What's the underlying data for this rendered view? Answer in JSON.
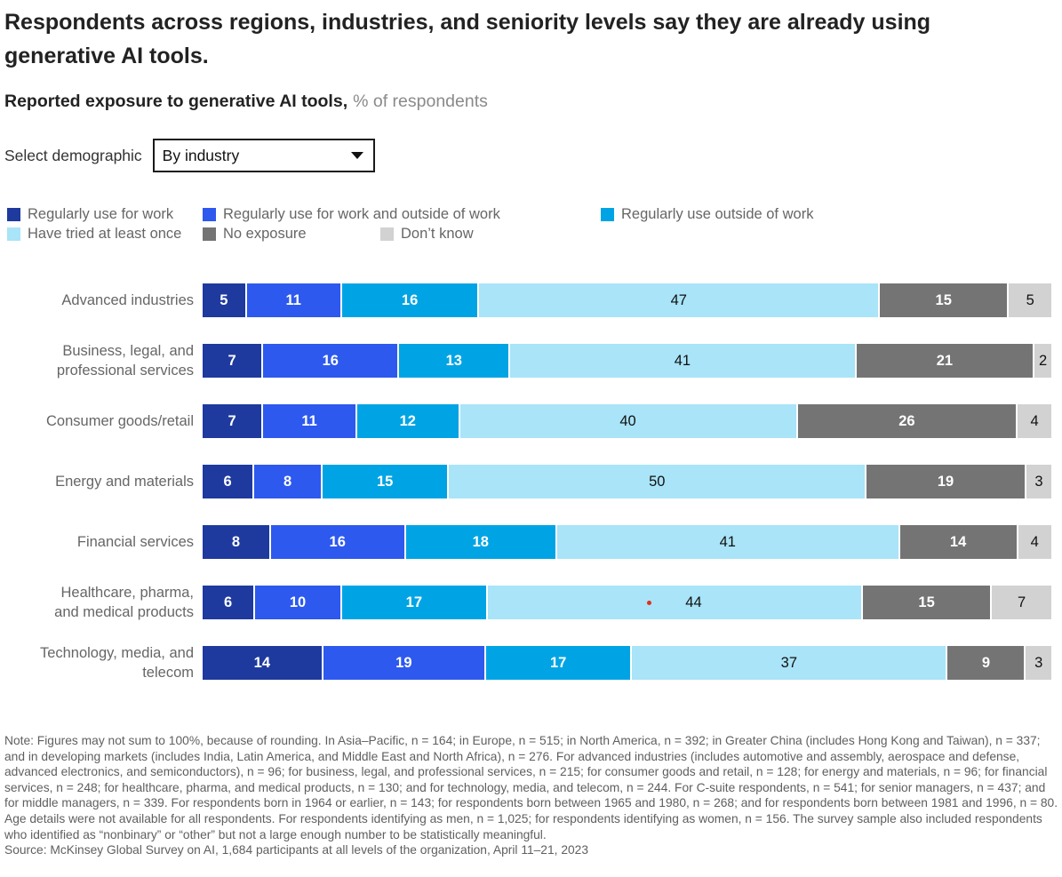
{
  "header": {
    "title": "Respondents across regions, industries, and seniority levels say they are already using\ngenerative AI tools.",
    "subtitle_bold": "Reported exposure to generative AI tools,",
    "subtitle_unit": "% of respondents"
  },
  "demographic": {
    "label": "Select demographic",
    "selected_option": "By industry"
  },
  "legend": {
    "rows": [
      [
        0,
        1,
        2
      ],
      [
        3,
        4,
        5
      ]
    ]
  },
  "chart_data": {
    "type": "bar",
    "stacked": true,
    "orientation": "horizontal",
    "unit": "% of respondents",
    "categories": [
      "Advanced industries",
      "Business, legal, and\nprofessional services",
      "Consumer goods/retail",
      "Energy and materials",
      "Financial services",
      "Healthcare, pharma,\nand medical products",
      "Technology, media, and\ntelecom"
    ],
    "series": [
      {
        "name": "Regularly use for work",
        "color": "#1e3a9e",
        "text": "light",
        "values": [
          5,
          7,
          7,
          6,
          8,
          6,
          14
        ]
      },
      {
        "name": "Regularly use for work and outside of work",
        "color": "#2d59ee",
        "text": "light",
        "values": [
          11,
          16,
          11,
          8,
          16,
          10,
          19
        ]
      },
      {
        "name": "Regularly use outside of work",
        "color": "#00a4e4",
        "text": "light",
        "values": [
          16,
          13,
          12,
          15,
          18,
          17,
          17
        ]
      },
      {
        "name": "Have tried at least once",
        "color": "#a9e4f8",
        "text": "dark",
        "values": [
          47,
          41,
          40,
          50,
          41,
          44,
          37
        ]
      },
      {
        "name": "No exposure",
        "color": "#747474",
        "text": "light",
        "values": [
          15,
          21,
          26,
          19,
          14,
          15,
          9
        ]
      },
      {
        "name": "Don’t know",
        "color": "#d2d2d2",
        "text": "dark",
        "values": [
          5,
          2,
          4,
          3,
          4,
          7,
          3
        ]
      }
    ],
    "annotation": {
      "type": "red-dot",
      "category_index": 5,
      "series_index": 3,
      "color": "#e0301e"
    }
  },
  "footer": {
    "note": "Note: Figures may not sum to 100%, because of rounding. In Asia–Pacific, n = 164; in Europe, n = 515; in North America, n = 392; in Greater China (includes Hong Kong and Taiwan), n = 337; and in developing markets (includes India, Latin America, and Middle East and North Africa), n = 276. For advanced industries (includes automotive and assembly, aerospace and defense, advanced electronics, and semiconductors), n = 96; for business, legal, and professional services, n = 215; for consumer goods and retail, n = 128; for energy and materials, n = 96; for financial services, n = 248; for healthcare, pharma, and medical products, n = 130; and for technology, media, and telecom, n = 244. For C-suite respondents, n = 541; for senior managers, n = 437; and for middle managers, n = 339. For respondents born in 1964 or earlier, n = 143; for respondents born between 1965 and 1980, n = 268; and for respondents born between 1981 and 1996, n = 80. Age details were not available for all respondents. For respondents identifying as men, n = 1,025; for respondents identifying as women, n = 156. The survey sample also included respondents who identified as “nonbinary” or “other” but not a large enough number to be statistically meaningful.",
    "source": "Source: McKinsey Global Survey on AI, 1,684 participants at all levels of the organization, April 11–21, 2023"
  }
}
